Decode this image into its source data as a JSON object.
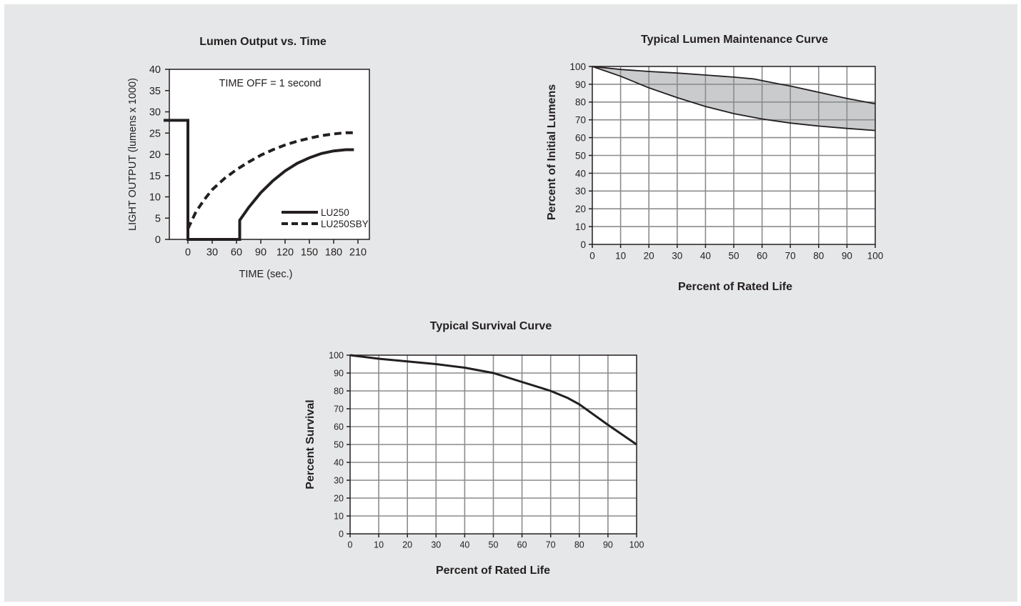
{
  "chart_data": [
    {
      "type": "line",
      "title": "Lumen Output vs. Time",
      "xlabel": "TIME (sec.)",
      "ylabel": "LIGHT OUTPUT (lumens x 1000)",
      "xlim": [
        -30,
        210
      ],
      "ylim": [
        0,
        40
      ],
      "xticks": [
        "0",
        "30",
        "60",
        "90",
        "120",
        "150",
        "180",
        "210"
      ],
      "yticks": [
        "0",
        "5",
        "10",
        "15",
        "20",
        "25",
        "30",
        "35",
        "40"
      ],
      "annotation": "TIME OFF = 1 second",
      "grid": false,
      "legend_position": "bottom-right",
      "series": [
        {
          "name": "LU250",
          "style": "solid",
          "points": [
            [
              -30,
              28
            ],
            [
              0,
              28
            ],
            [
              0,
              0
            ],
            [
              64,
              0
            ],
            [
              64,
              4.5
            ],
            [
              75,
              7.5
            ],
            [
              90,
              11
            ],
            [
              105,
              13.8
            ],
            [
              120,
              16.1
            ],
            [
              135,
              17.9
            ],
            [
              150,
              19.2
            ],
            [
              165,
              20.2
            ],
            [
              180,
              20.8
            ],
            [
              195,
              21.1
            ],
            [
              205,
              21.1
            ]
          ]
        },
        {
          "name": "LU250SBY",
          "style": "dashed",
          "points": [
            [
              0,
              2.5
            ],
            [
              10,
              6.5
            ],
            [
              20,
              9.3
            ],
            [
              30,
              11.7
            ],
            [
              45,
              14.3
            ],
            [
              60,
              16.4
            ],
            [
              75,
              18.2
            ],
            [
              90,
              19.8
            ],
            [
              105,
              21.1
            ],
            [
              120,
              22.2
            ],
            [
              135,
              23.1
            ],
            [
              150,
              23.8
            ],
            [
              165,
              24.4
            ],
            [
              180,
              24.8
            ],
            [
              195,
              25.1
            ],
            [
              205,
              25.1
            ]
          ]
        }
      ]
    },
    {
      "type": "area",
      "title": "Typical Lumen Maintenance Curve",
      "xlabel": "Percent of Rated Life",
      "ylabel": "Percent of Initial Lumens",
      "xlim": [
        0,
        100
      ],
      "ylim": [
        0,
        100
      ],
      "xticks": [
        "0",
        "10",
        "20",
        "30",
        "40",
        "50",
        "60",
        "70",
        "80",
        "90",
        "100"
      ],
      "yticks": [
        "0",
        "10",
        "20",
        "30",
        "40",
        "50",
        "60",
        "70",
        "80",
        "90",
        "100"
      ],
      "grid": true,
      "band_color": "#cacbcd",
      "series": [
        {
          "role": "upper",
          "points": [
            [
              0,
              100
            ],
            [
              10,
              98.3
            ],
            [
              20,
              97.2
            ],
            [
              30,
              96.3
            ],
            [
              40,
              95.2
            ],
            [
              50,
              94
            ],
            [
              57,
              93
            ],
            [
              65,
              90.5
            ],
            [
              70,
              89
            ],
            [
              80,
              85.5
            ],
            [
              90,
              82
            ],
            [
              100,
              79
            ]
          ]
        },
        {
          "role": "lower",
          "points": [
            [
              0,
              100
            ],
            [
              10,
              94.5
            ],
            [
              20,
              88
            ],
            [
              30,
              82.5
            ],
            [
              40,
              77.5
            ],
            [
              50,
              73.5
            ],
            [
              60,
              70.5
            ],
            [
              70,
              68.2
            ],
            [
              80,
              66.5
            ],
            [
              90,
              65.2
            ],
            [
              100,
              64
            ]
          ]
        }
      ]
    },
    {
      "type": "line",
      "title": "Typical Survival Curve",
      "xlabel": "Percent of Rated Life",
      "ylabel": "Percent Survival",
      "xlim": [
        0,
        100
      ],
      "ylim": [
        0,
        100
      ],
      "xticks": [
        "0",
        "10",
        "20",
        "30",
        "40",
        "50",
        "60",
        "70",
        "80",
        "90",
        "100"
      ],
      "yticks": [
        "0",
        "10",
        "20",
        "30",
        "40",
        "50",
        "60",
        "70",
        "80",
        "90",
        "100"
      ],
      "grid": true,
      "series": [
        {
          "points": [
            [
              0,
              100
            ],
            [
              10,
              98
            ],
            [
              20,
              96.5
            ],
            [
              30,
              95
            ],
            [
              40,
              93
            ],
            [
              50,
              90
            ],
            [
              60,
              85
            ],
            [
              70,
              80
            ],
            [
              76,
              76
            ],
            [
              80,
              72.5
            ],
            [
              90,
              61
            ],
            [
              100,
              50
            ]
          ]
        }
      ]
    }
  ]
}
